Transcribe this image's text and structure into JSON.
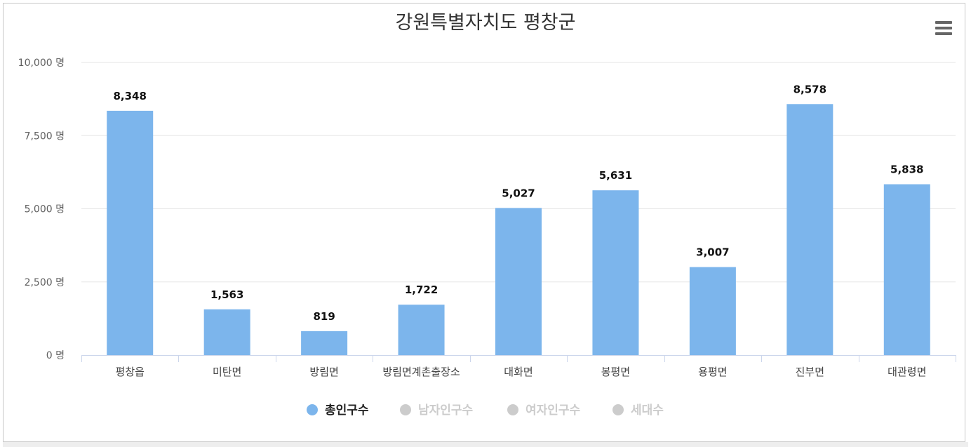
{
  "chart_data": {
    "type": "bar",
    "title": "강원특별자치도 평창군",
    "categories": [
      "평창읍",
      "미탄면",
      "방림면",
      "방림면계촌출장소",
      "대화면",
      "봉평면",
      "용평면",
      "진부면",
      "대관령면"
    ],
    "series": [
      {
        "name": "총인구수",
        "values": [
          8348,
          1563,
          819,
          1722,
          5027,
          5631,
          3007,
          8578,
          5838
        ],
        "color": "#7cb5ec",
        "visible": true
      },
      {
        "name": "남자인구수",
        "visible": false
      },
      {
        "name": "여자인구수",
        "visible": false
      },
      {
        "name": "세대수",
        "visible": false
      }
    ],
    "data_labels": [
      "8,348",
      "1,563",
      "819",
      "1,722",
      "5,027",
      "5,631",
      "3,007",
      "8,578",
      "5,838"
    ],
    "y_ticks": [
      0,
      2500,
      5000,
      7500,
      10000
    ],
    "y_tick_labels": [
      "0 명",
      "2,500 명",
      "5,000 명",
      "7,500 명",
      "10,000 명"
    ],
    "ylim": [
      0,
      10000
    ],
    "grid": true,
    "legend_position": "bottom-center",
    "legend_hidden_color": "#cccccc"
  }
}
